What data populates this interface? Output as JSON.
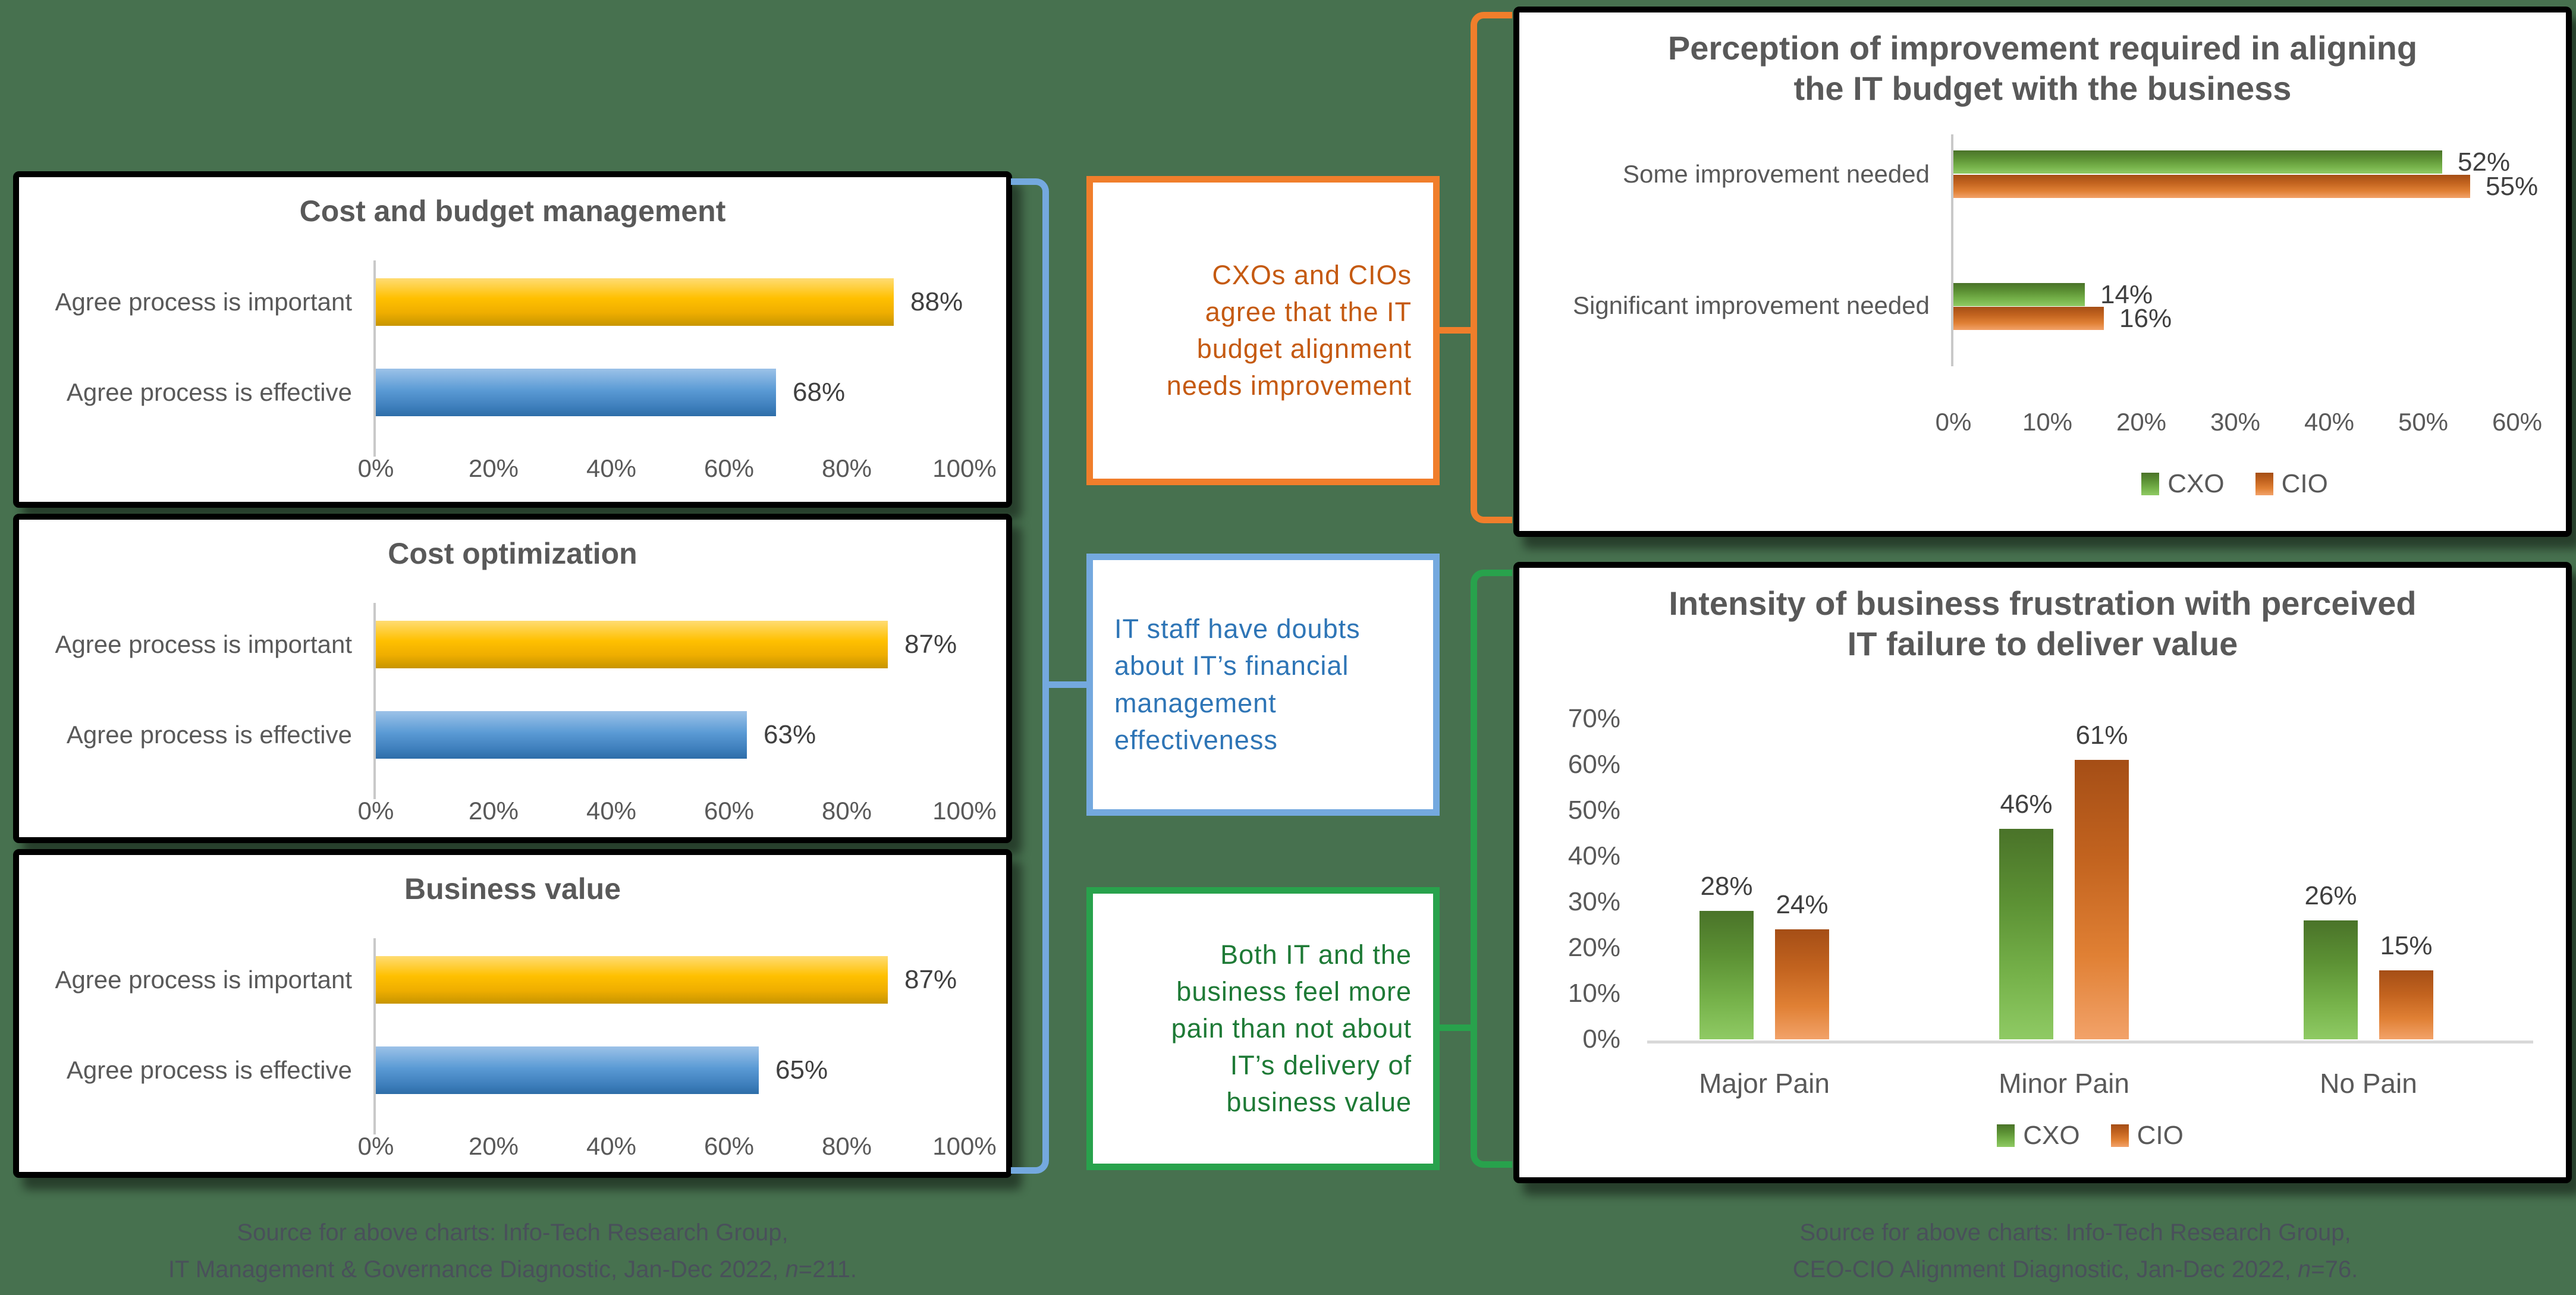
{
  "page": {
    "background_color": "#47714F",
    "card_background": "#FFFFFF",
    "card_border_color": "#000000"
  },
  "chart_data": [
    {
      "type": "bar",
      "orientation": "horizontal",
      "title": "Cost and budget management",
      "categories": [
        "Agree process is important",
        "Agree process is effective"
      ],
      "values": [
        88,
        68
      ],
      "labels": [
        "88%",
        "68%"
      ],
      "x_ticks": [
        "0%",
        "20%",
        "40%",
        "60%",
        "80%",
        "100%"
      ],
      "xlim": [
        0,
        100
      ],
      "bar_colors": [
        "#FFC000",
        "#5B9BD5"
      ],
      "grid": false
    },
    {
      "type": "bar",
      "orientation": "horizontal",
      "title": "Cost optimization",
      "categories": [
        "Agree process is important",
        "Agree process is effective"
      ],
      "values": [
        87,
        63
      ],
      "labels": [
        "87%",
        "63%"
      ],
      "x_ticks": [
        "0%",
        "20%",
        "40%",
        "60%",
        "80%",
        "100%"
      ],
      "xlim": [
        0,
        100
      ],
      "bar_colors": [
        "#FFC000",
        "#5B9BD5"
      ],
      "grid": false
    },
    {
      "type": "bar",
      "orientation": "horizontal",
      "title": "Business value",
      "categories": [
        "Agree process is important",
        "Agree process is effective"
      ],
      "values": [
        87,
        65
      ],
      "labels": [
        "87%",
        "65%"
      ],
      "x_ticks": [
        "0%",
        "20%",
        "40%",
        "60%",
        "80%",
        "100%"
      ],
      "xlim": [
        0,
        100
      ],
      "bar_colors": [
        "#FFC000",
        "#5B9BD5"
      ],
      "grid": false
    },
    {
      "type": "bar",
      "orientation": "horizontal",
      "grouped": true,
      "title": "Perception of improvement required in aligning\nthe IT budget with the business",
      "categories": [
        "Some improvement needed",
        "Significant improvement needed"
      ],
      "series": [
        {
          "name": "CXO",
          "color": "#70AD47",
          "values": [
            52,
            14
          ],
          "labels": [
            "52%",
            "14%"
          ]
        },
        {
          "name": "CIO",
          "color": "#ED7D31",
          "values": [
            55,
            16
          ],
          "labels": [
            "55%",
            "16%"
          ]
        }
      ],
      "x_ticks": [
        "0%",
        "10%",
        "20%",
        "30%",
        "40%",
        "50%",
        "60%"
      ],
      "xlim": [
        0,
        60
      ],
      "legend": [
        "CXO",
        "CIO"
      ],
      "legend_position": "bottom",
      "grid": false
    },
    {
      "type": "bar",
      "orientation": "vertical",
      "grouped": true,
      "title": "Intensity of business frustration with perceived\nIT failure to deliver value",
      "categories": [
        "Major Pain",
        "Minor Pain",
        "No Pain"
      ],
      "series": [
        {
          "name": "CXO",
          "color": "#70AD47",
          "values": [
            28,
            46,
            26
          ],
          "labels": [
            "28%",
            "46%",
            "26%"
          ]
        },
        {
          "name": "CIO",
          "color": "#ED7D31",
          "values": [
            24,
            61,
            15
          ],
          "labels": [
            "24%",
            "61%",
            "15%"
          ]
        }
      ],
      "y_ticks": [
        "70%",
        "60%",
        "50%",
        "40%",
        "30%",
        "20%",
        "10%",
        "0%"
      ],
      "ylim": [
        0,
        70
      ],
      "legend": [
        "CXO",
        "CIO"
      ],
      "legend_position": "bottom",
      "grid": false
    }
  ],
  "callouts": [
    {
      "text": "CXOs and CIOs\nagree that the IT\nbudget alignment\nneeds improvement",
      "border_color": "#F07E2B",
      "text_color": "#C55A11",
      "align": "right"
    },
    {
      "text": "IT staff have doubts\nabout IT’s financial\nmanagement\neffectiveness",
      "border_color": "#74A9DF",
      "text_color": "#2E75B6",
      "align": "left"
    },
    {
      "text": "Both IT and the\nbusiness feel more\npain than not about\nIT’s delivery of\nbusiness value",
      "border_color": "#28A24C",
      "text_color": "#1E7A36",
      "align": "right"
    }
  ],
  "sources": {
    "left": {
      "line1": "Source for above charts: Info-Tech Research Group,",
      "line2_prefix": "IT Management & Governance Diagnostic, Jan-Dec 2022, ",
      "line2_n": "n",
      "line2_suffix": "=211."
    },
    "right": {
      "line1": "Source for above charts: Info-Tech Research Group,",
      "line2_prefix": "CEO-CIO Alignment Diagnostic, Jan-Dec 2022, ",
      "line2_n": "n",
      "line2_suffix": "=76."
    }
  },
  "colors": {
    "title_gray": "#595959",
    "axis_label_gray": "#595959",
    "data_label": "#404040",
    "axis_line": "#C9C9C9",
    "gold_bar": "#FFC000",
    "blue_bar": "#5B9BD5",
    "green_bar": "#70AD47",
    "orange_bar": "#ED7D31",
    "source_text": "#49505A"
  }
}
